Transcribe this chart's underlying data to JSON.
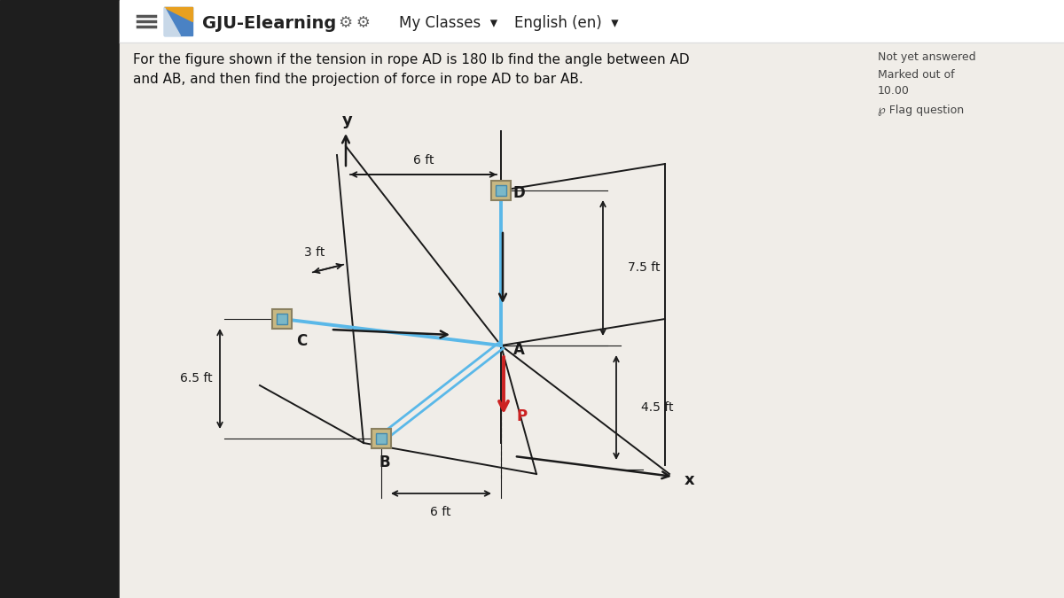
{
  "bg_color": "#f0ede8",
  "left_strip_color": "#2a2a2a",
  "header_bg": "#ffffff",
  "header_text": "GJU-Elearning",
  "header_sub1": "My Classes",
  "header_sub2": "English (en)",
  "question_text_line1": "For the figure shown if the tension in rope AD is 180 lb find the angle between AD",
  "question_text_line2": "and AB, and then find the projection of force in rope AD to bar AB.",
  "sidebar_text1": "Not yet answered",
  "sidebar_text2": "Marked out of",
  "sidebar_text3": "10.00",
  "sidebar_text4": "℘ Flag question",
  "dim_6ft_top": "6 ft",
  "dim_3ft": "3 ft",
  "dim_75ft": "7.5 ft",
  "dim_65ft": "6.5 ft",
  "dim_45ft": "4.5 ft",
  "dim_6ft_bot": "6 ft",
  "label_D": "D",
  "label_C": "C",
  "label_A": "A",
  "label_B": "B",
  "label_P": "P",
  "label_x": "x",
  "label_y": "y",
  "rope_color": "#5ab8e8",
  "bar_color": "#5ab8e8",
  "force_color": "#cc2222",
  "struct_color": "#1a1a1a",
  "dim_color": "#1a1a1a",
  "pulley_outer": "#c8b882",
  "pulley_inner": "#7ab8c8",
  "pulley_border": "#8a8060"
}
